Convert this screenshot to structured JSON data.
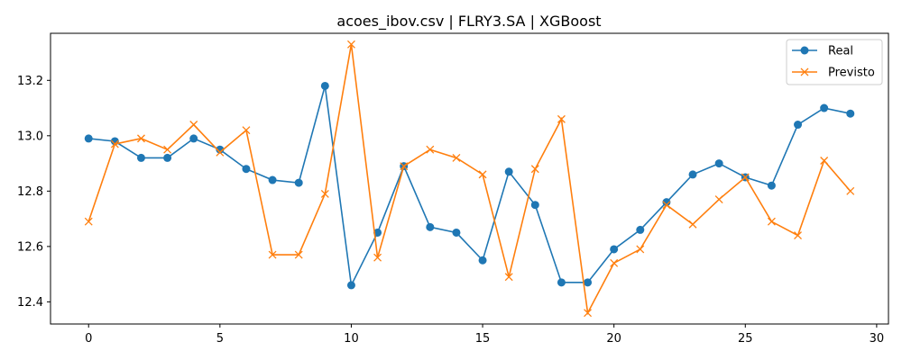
{
  "chart_data": {
    "type": "line",
    "title": "acoes_ibov.csv | FLRY3.SA | XGBoost",
    "xlabel": "",
    "ylabel": "",
    "xlim": [
      -1.45,
      30.45
    ],
    "ylim": [
      12.32,
      13.37
    ],
    "x_ticks": [
      0,
      5,
      10,
      15,
      20,
      25,
      30
    ],
    "x_tick_labels": [
      "0",
      "5",
      "10",
      "15",
      "20",
      "25",
      "30"
    ],
    "y_ticks": [
      12.4,
      12.6,
      12.8,
      13.0,
      13.2
    ],
    "y_tick_labels": [
      "12.4",
      "12.6",
      "12.8",
      "13.0",
      "13.2"
    ],
    "grid": false,
    "legend_position": "top-right",
    "x": [
      0,
      1,
      2,
      3,
      4,
      5,
      6,
      7,
      8,
      9,
      10,
      11,
      12,
      13,
      14,
      15,
      16,
      17,
      18,
      19,
      20,
      21,
      22,
      23,
      24,
      25,
      26,
      27,
      28,
      29
    ],
    "series": [
      {
        "name": "Real",
        "color": "#1f77b4",
        "marker": "circle",
        "values": [
          12.99,
          12.98,
          12.92,
          12.92,
          12.99,
          12.95,
          12.88,
          12.84,
          12.83,
          13.18,
          12.46,
          12.65,
          12.89,
          12.67,
          12.65,
          12.55,
          12.87,
          12.75,
          12.47,
          12.47,
          12.59,
          12.66,
          12.76,
          12.86,
          12.9,
          12.85,
          12.82,
          13.04,
          13.1,
          13.08
        ]
      },
      {
        "name": "Previsto",
        "color": "#ff7f0e",
        "marker": "x",
        "values": [
          12.69,
          12.97,
          12.99,
          12.95,
          13.04,
          12.94,
          13.02,
          12.57,
          12.57,
          12.79,
          13.33,
          12.56,
          12.89,
          12.95,
          12.92,
          12.86,
          12.49,
          12.88,
          13.06,
          12.36,
          12.54,
          12.59,
          12.75,
          12.68,
          12.77,
          12.85,
          12.69,
          12.64,
          12.91,
          12.8
        ]
      }
    ]
  }
}
